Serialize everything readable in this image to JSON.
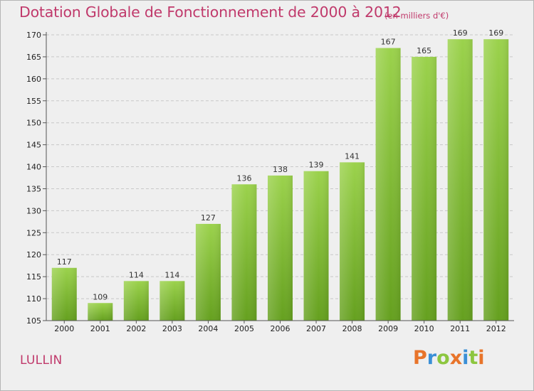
{
  "chart_data": {
    "type": "bar",
    "title": "Dotation Globale de Fonctionnement de 2000 à 2012",
    "subtitle": "(en milliers d'€)",
    "categories": [
      "2000",
      "2001",
      "2002",
      "2003",
      "2004",
      "2005",
      "2006",
      "2007",
      "2008",
      "2009",
      "2010",
      "2011",
      "2012"
    ],
    "values": [
      117,
      109,
      114,
      114,
      127,
      136,
      138,
      139,
      141,
      167,
      165,
      169,
      169
    ],
    "ylim": [
      105,
      170
    ],
    "yticks": [
      105,
      110,
      115,
      120,
      125,
      130,
      135,
      140,
      145,
      150,
      155,
      160,
      165,
      170
    ],
    "grid": true,
    "bar_color": "#8cc63f",
    "bar_color_dark": "#6aa026"
  },
  "footer": {
    "commune": "LULLIN",
    "logo_letters": [
      "P",
      "r",
      "o",
      "x",
      "i",
      "t",
      "i"
    ],
    "logo_colors": [
      "#e8742a",
      "#3a8fd6",
      "#8cc63f",
      "#e8742a",
      "#3a8fd6",
      "#8cc63f",
      "#e8742a"
    ]
  }
}
